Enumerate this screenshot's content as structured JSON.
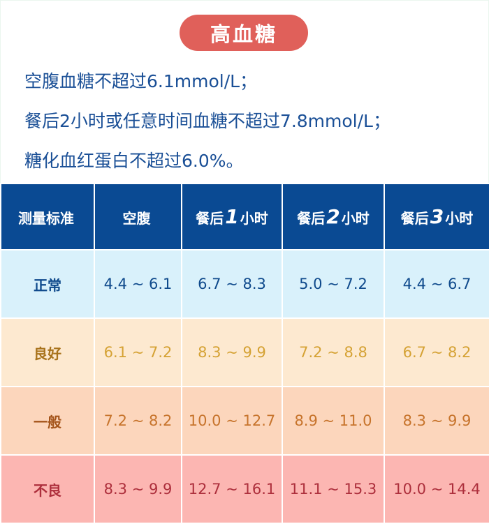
{
  "title": "高血糖",
  "criteria": [
    "空腹血糖不超过6.1mmol/L；",
    "餐后2小时或任意时间血糖不超过7.8mmol/L；",
    "糖化血红蛋白不超过6.0%。"
  ],
  "table": {
    "headers": [
      {
        "pre": "测量标准",
        "num": "",
        "post": ""
      },
      {
        "pre": "空腹",
        "num": "",
        "post": ""
      },
      {
        "pre": "餐后",
        "num": "1",
        "post": "小时"
      },
      {
        "pre": "餐后",
        "num": "2",
        "post": "小时"
      },
      {
        "pre": "餐后",
        "num": "3",
        "post": "小时"
      }
    ],
    "rows": [
      {
        "label": "正常",
        "values": [
          "4.4 ~ 6.1",
          "6.7 ~ 8.3",
          "5.0 ~ 7.2",
          "4.4 ~ 6.7"
        ],
        "bg": "#d9f1fb",
        "color": "#0f4a8c"
      },
      {
        "label": "良好",
        "values": [
          "6.1 ~ 7.2",
          "8.3 ~ 9.9",
          "7.2 ~ 8.8",
          "6.7 ~ 8.2"
        ],
        "bg": "#fde9d0",
        "color": "#d5a234"
      },
      {
        "label": "一般",
        "values": [
          "7.2 ~ 8.2",
          "10.0 ~ 12.7",
          "8.9 ~ 11.0",
          "8.3 ~ 9.9"
        ],
        "bg": "#fcd6bc",
        "color": "#c7742c"
      },
      {
        "label": "不良",
        "values": [
          "8.3 ~ 9.9",
          "12.7 ~ 16.1",
          "11.1 ~ 15.3",
          "10.0 ~ 14.4"
        ],
        "bg": "#fcb6b2",
        "color": "#ad2f3c"
      }
    ]
  },
  "colors": {
    "title_pill": "#e0605a",
    "header_bg": "#0a4a93",
    "text_blue": "#1a4f96"
  }
}
